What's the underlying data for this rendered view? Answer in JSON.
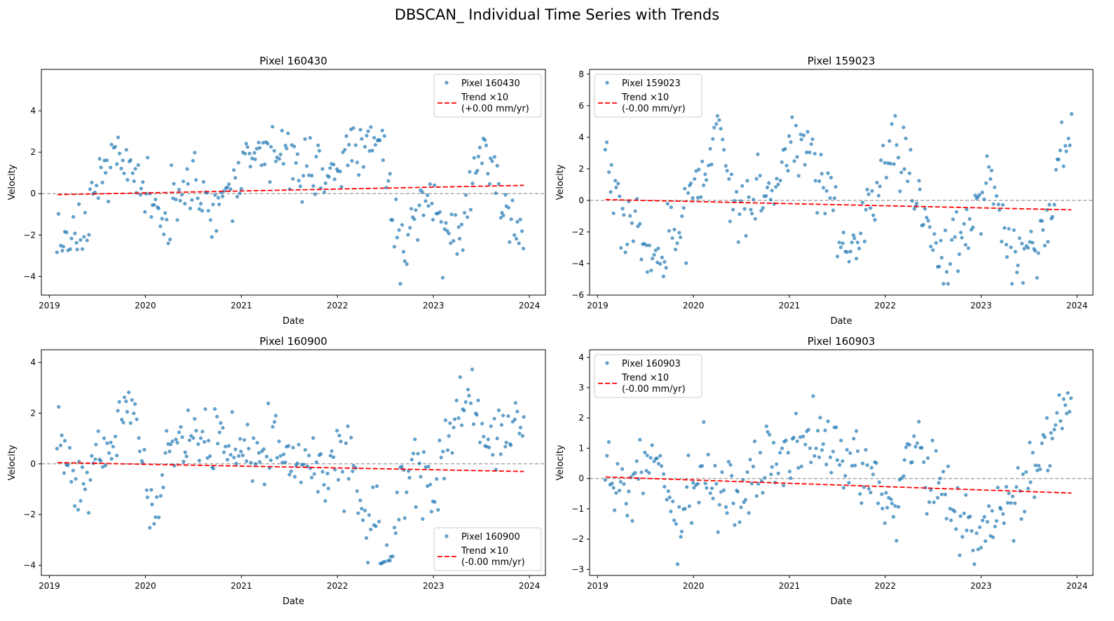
{
  "figure_title": "DBSCAN_ Individual Time Series with Trends",
  "colors": {
    "points": "#1f77b4",
    "trend": "#ff0000",
    "zero_line": "#808080"
  },
  "chart_data": [
    {
      "type": "scatter",
      "title": "Pixel 160430",
      "xlabel": "Date",
      "ylabel": "Velocity",
      "xlim": [
        "2018-12-01",
        "2024-03-01"
      ],
      "ylim": [
        -4.9,
        6.0
      ],
      "x_ticks": [
        "2019",
        "2020",
        "2021",
        "2022",
        "2023",
        "2024"
      ],
      "y_ticks": [
        -4,
        -2,
        0,
        2,
        4
      ],
      "zero_reference_line": 0,
      "legend_position": "upper right",
      "series": [
        {
          "name": "Pixel 160430",
          "kind": "points",
          "x_range": [
            "2019-02-01",
            "2023-12-10"
          ],
          "n_points": 300,
          "envelope": {
            "2019-02": -3.3,
            "2019-05": -2.0,
            "2019-08": 1.8,
            "2019-12": 0.8,
            "2020-03": -1.2,
            "2020-06": 0.5,
            "2020-09": -0.8,
            "2020-12": 0.2,
            "2021-03": 2.5,
            "2021-06": 2.0,
            "2021-09": 1.2,
            "2021-12": 0.8,
            "2022-03": 2.0,
            "2022-06": 2.8,
            "2022-09": -2.5,
            "2022-12": -0.5,
            "2023-03": -2.0,
            "2023-07": 1.5,
            "2023-12": -1.8
          }
        },
        {
          "name": "Trend ×10\n(+0.00 mm/yr)",
          "kind": "line",
          "x": [
            "2019-02-01",
            "2023-12-10"
          ],
          "y": [
            -0.05,
            0.4
          ]
        }
      ]
    },
    {
      "type": "scatter",
      "title": "Pixel 159023",
      "xlabel": "Date",
      "ylabel": "Velocity",
      "xlim": [
        "2018-12-01",
        "2024-03-01"
      ],
      "ylim": [
        -6.0,
        8.3
      ],
      "x_ticks": [
        "2019",
        "2020",
        "2021",
        "2022",
        "2023",
        "2024"
      ],
      "y_ticks": [
        -6,
        -4,
        -2,
        0,
        2,
        4,
        6,
        8
      ],
      "zero_reference_line": 0,
      "legend_position": "upper left",
      "series": [
        {
          "name": "Pixel 159023",
          "kind": "points",
          "x_range": [
            "2019-02-01",
            "2023-12-10"
          ],
          "n_points": 300,
          "envelope": {
            "2019-02": 2.5,
            "2019-05": -1.0,
            "2019-08": -3.8,
            "2019-11": -2.0,
            "2020-02": 2.0,
            "2020-04": 4.5,
            "2020-07": -1.0,
            "2020-10": 0.0,
            "2021-02": 3.5,
            "2021-05": 1.5,
            "2021-08": -3.5,
            "2021-11": -0.5,
            "2022-02": 4.0,
            "2022-05": 0.5,
            "2022-08": -4.0,
            "2022-11": -2.0,
            "2023-02": 1.5,
            "2023-05": -3.5,
            "2023-08": -3.0,
            "2023-12": 4.0
          }
        },
        {
          "name": "Trend ×10\n(-0.00 mm/yr)",
          "kind": "line",
          "x": [
            "2019-02-01",
            "2023-12-10"
          ],
          "y": [
            0.05,
            -0.6
          ]
        }
      ]
    },
    {
      "type": "scatter",
      "title": "Pixel 160900",
      "xlabel": "Date",
      "ylabel": "Velocity",
      "xlim": [
        "2018-12-01",
        "2024-03-01"
      ],
      "ylim": [
        -4.4,
        4.5
      ],
      "x_ticks": [
        "2019",
        "2020",
        "2021",
        "2022",
        "2023",
        "2024"
      ],
      "y_ticks": [
        -4,
        -2,
        0,
        2,
        4
      ],
      "zero_reference_line": 0,
      "legend_position": "lower right",
      "series": [
        {
          "name": "Pixel 160900",
          "kind": "points",
          "x_range": [
            "2019-02-01",
            "2023-12-10"
          ],
          "n_points": 300,
          "envelope": {
            "2019-02": 0.9,
            "2019-05": -1.0,
            "2019-08": 0.3,
            "2019-11": 2.5,
            "2020-02": -1.8,
            "2020-05": 1.0,
            "2020-08": 1.0,
            "2020-11": 0.7,
            "2021-02": 0.5,
            "2021-05": 0.6,
            "2021-08": 0.0,
            "2021-11": -0.3,
            "2022-02": 0.0,
            "2022-05": -2.0,
            "2022-07": -3.5,
            "2022-10": -0.3,
            "2023-01": -0.8,
            "2023-05": 2.5,
            "2023-08": 1.0,
            "2023-12": 2.0
          }
        },
        {
          "name": "Trend ×10\n(-0.00 mm/yr)",
          "kind": "line",
          "x": [
            "2019-02-01",
            "2023-12-10"
          ],
          "y": [
            0.05,
            -0.3
          ]
        }
      ]
    },
    {
      "type": "scatter",
      "title": "Pixel 160903",
      "xlabel": "Date",
      "ylabel": "Velocity",
      "xlim": [
        "2018-12-01",
        "2024-03-01"
      ],
      "ylim": [
        -3.2,
        4.25
      ],
      "x_ticks": [
        "2019",
        "2020",
        "2021",
        "2022",
        "2023",
        "2024"
      ],
      "y_ticks": [
        -3,
        -2,
        -1,
        0,
        1,
        2,
        3,
        4
      ],
      "zero_reference_line": 0,
      "legend_position": "upper left",
      "series": [
        {
          "name": "Pixel 160903",
          "kind": "points",
          "x_range": [
            "2019-02-01",
            "2023-12-10"
          ],
          "n_points": 300,
          "envelope": {
            "2019-02": 0.5,
            "2019-05": -0.5,
            "2019-08": 0.5,
            "2019-11": -1.2,
            "2020-02": 0.0,
            "2020-05": -0.5,
            "2020-08": -0.3,
            "2020-11": 0.5,
            "2021-02": 1.0,
            "2021-05": 1.3,
            "2021-08": 0.8,
            "2021-11": 0.0,
            "2022-02": -1.0,
            "2022-04": 1.0,
            "2022-07": 0.0,
            "2022-10": -1.2,
            "2023-01": -2.0,
            "2023-04": -1.0,
            "2023-08": 0.5,
            "2023-12": 2.5
          }
        },
        {
          "name": "Trend ×10\n(-0.00 mm/yr)",
          "kind": "line",
          "x": [
            "2019-02-01",
            "2023-12-10"
          ],
          "y": [
            0.05,
            -0.48
          ]
        }
      ]
    }
  ]
}
